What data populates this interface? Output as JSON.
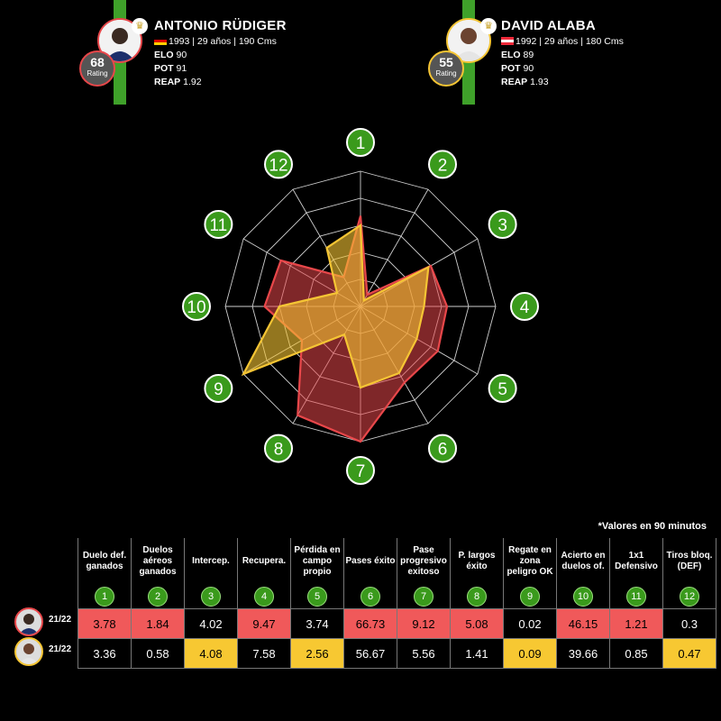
{
  "player1": {
    "name": "ANTONIO RÜDIGER",
    "info": "1993 | 29 años | 190 Cms",
    "elo_label": "ELO",
    "elo": "90",
    "pot_label": "POT",
    "pot": "91",
    "reap_label": "REAP",
    "reap": "1.92",
    "rating": "68",
    "rating_label": "Rating",
    "flag": "germany-flag",
    "color": "#e8474a"
  },
  "player2": {
    "name": "DAVID ALABA",
    "info": "1992 | 29 años | 180 Cms",
    "elo_label": "ELO",
    "elo": "89",
    "pot_label": "POT",
    "pot": "90",
    "reap_label": "REAP",
    "reap": "1.93",
    "rating": "55",
    "rating_label": "Rating",
    "flag": "austria-flag",
    "color": "#f5c534"
  },
  "chart_data": {
    "type": "radar",
    "axes": [
      "1",
      "2",
      "3",
      "4",
      "5",
      "6",
      "7",
      "8",
      "9",
      "10",
      "11",
      "12"
    ],
    "series": [
      {
        "name": "ANTONIO RÜDIGER",
        "color": "#e8474a",
        "values": [
          0.67,
          0.1,
          0.6,
          0.64,
          0.66,
          0.65,
          1.0,
          0.93,
          0.5,
          0.71,
          0.68,
          0.25
        ]
      },
      {
        "name": "DAVID ALABA",
        "color": "#f5c534",
        "values": [
          0.6,
          0.05,
          0.58,
          0.47,
          0.48,
          0.57,
          0.6,
          0.24,
          1.0,
          0.6,
          0.2,
          0.5
        ]
      }
    ],
    "rings": 5,
    "grid": true,
    "note": "*Valores en 90 minutos",
    "headers": [
      "Duelo def. ganados",
      "Duelos aéreos ganados",
      "Intercep.",
      "Recupera.",
      "Pérdida en campo propio",
      "Pases éxito",
      "Pase progresivo exitoso",
      "P. largos éxito",
      "Regate en zona peligro OK",
      "Acierto en duelos of.",
      "1x1 Defensivo",
      "Tiros bloq. (DEF)"
    ],
    "numbers": [
      "1",
      "2",
      "3",
      "4",
      "5",
      "6",
      "7",
      "8",
      "9",
      "10",
      "11",
      "12"
    ],
    "rows": [
      {
        "season": "21/22",
        "values": [
          "3.78",
          "1.84",
          "4.02",
          "9.47",
          "3.74",
          "66.73",
          "9.12",
          "5.08",
          "0.02",
          "46.15",
          "1.21",
          "0.3"
        ],
        "highlight": [
          true,
          true,
          false,
          true,
          false,
          true,
          true,
          true,
          false,
          true,
          true,
          false
        ],
        "color": "#f0595a"
      },
      {
        "season": "21/22",
        "values": [
          "3.36",
          "0.58",
          "4.08",
          "7.58",
          "2.56",
          "56.67",
          "5.56",
          "1.41",
          "0.09",
          "39.66",
          "0.85",
          "0.47"
        ],
        "highlight": [
          false,
          false,
          true,
          false,
          true,
          false,
          false,
          false,
          true,
          false,
          false,
          true
        ],
        "color": "#f7c832"
      }
    ]
  }
}
